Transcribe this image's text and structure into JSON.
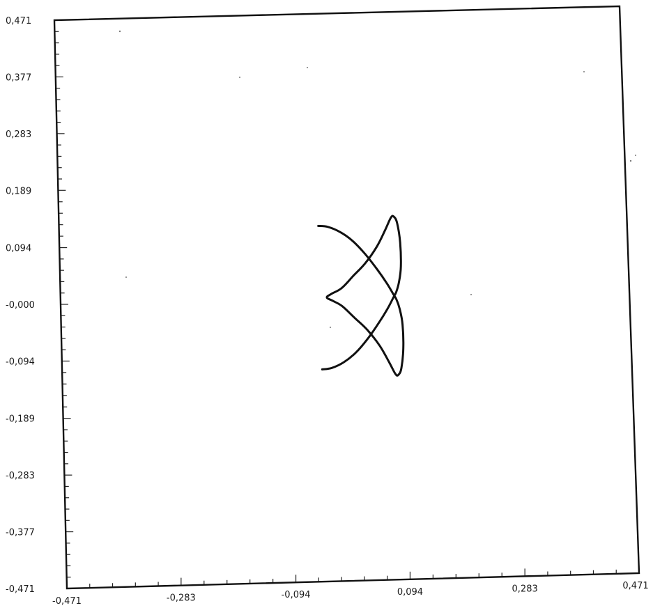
{
  "chart_data": {
    "type": "line",
    "title": "",
    "xlabel": "",
    "ylabel": "",
    "xlim": [
      -0.471,
      0.471
    ],
    "ylim": [
      -0.471,
      0.471
    ],
    "grid": false,
    "x_ticks": [
      -0.471,
      -0.283,
      -0.094,
      0.094,
      0.283,
      0.471
    ],
    "x_tick_labels": [
      "-0,471",
      "-0,283",
      "-0,094",
      "0,094",
      "0,283",
      "0,471"
    ],
    "y_ticks": [
      0.471,
      0.377,
      0.283,
      0.189,
      0.094,
      0.0,
      -0.094,
      -0.189,
      -0.283,
      -0.377,
      -0.471
    ],
    "y_tick_labels": [
      "0,471",
      "0,377",
      "0,283",
      "0,189",
      "0,094",
      "-0,000",
      "-0,094",
      "-0,189",
      "-0,283",
      "-0,377",
      "-0,471"
    ],
    "minor_ticks_per_major": 5,
    "series": [
      {
        "x": [
          -0.041,
          -0.025,
          -0.005,
          0.015,
          0.035,
          0.055,
          0.07,
          0.08,
          0.085,
          0.09,
          0.094,
          0.094,
          0.09,
          0.085,
          0.08,
          0.07,
          0.055,
          0.035,
          0.015,
          -0.005,
          -0.02,
          -0.03,
          -0.022,
          -0.005,
          0.015,
          0.035,
          0.055,
          0.07,
          0.08,
          0.085,
          0.09,
          0.094,
          0.094,
          0.09,
          0.085,
          0.08,
          0.07,
          0.055,
          0.035,
          0.015,
          -0.005,
          -0.025,
          -0.041
        ],
        "y": [
          0.119,
          0.117,
          0.108,
          0.093,
          0.071,
          0.044,
          0.021,
          0.003,
          -0.006,
          -0.022,
          -0.048,
          -0.088,
          -0.12,
          -0.131,
          -0.13,
          -0.11,
          -0.082,
          -0.055,
          -0.035,
          -0.015,
          -0.006,
          0.0,
          0.006,
          0.015,
          0.035,
          0.055,
          0.082,
          0.11,
          0.13,
          0.131,
          0.12,
          0.088,
          0.048,
          0.022,
          0.006,
          -0.003,
          -0.021,
          -0.044,
          -0.071,
          -0.093,
          -0.108,
          -0.117,
          -0.119
        ]
      }
    ]
  }
}
